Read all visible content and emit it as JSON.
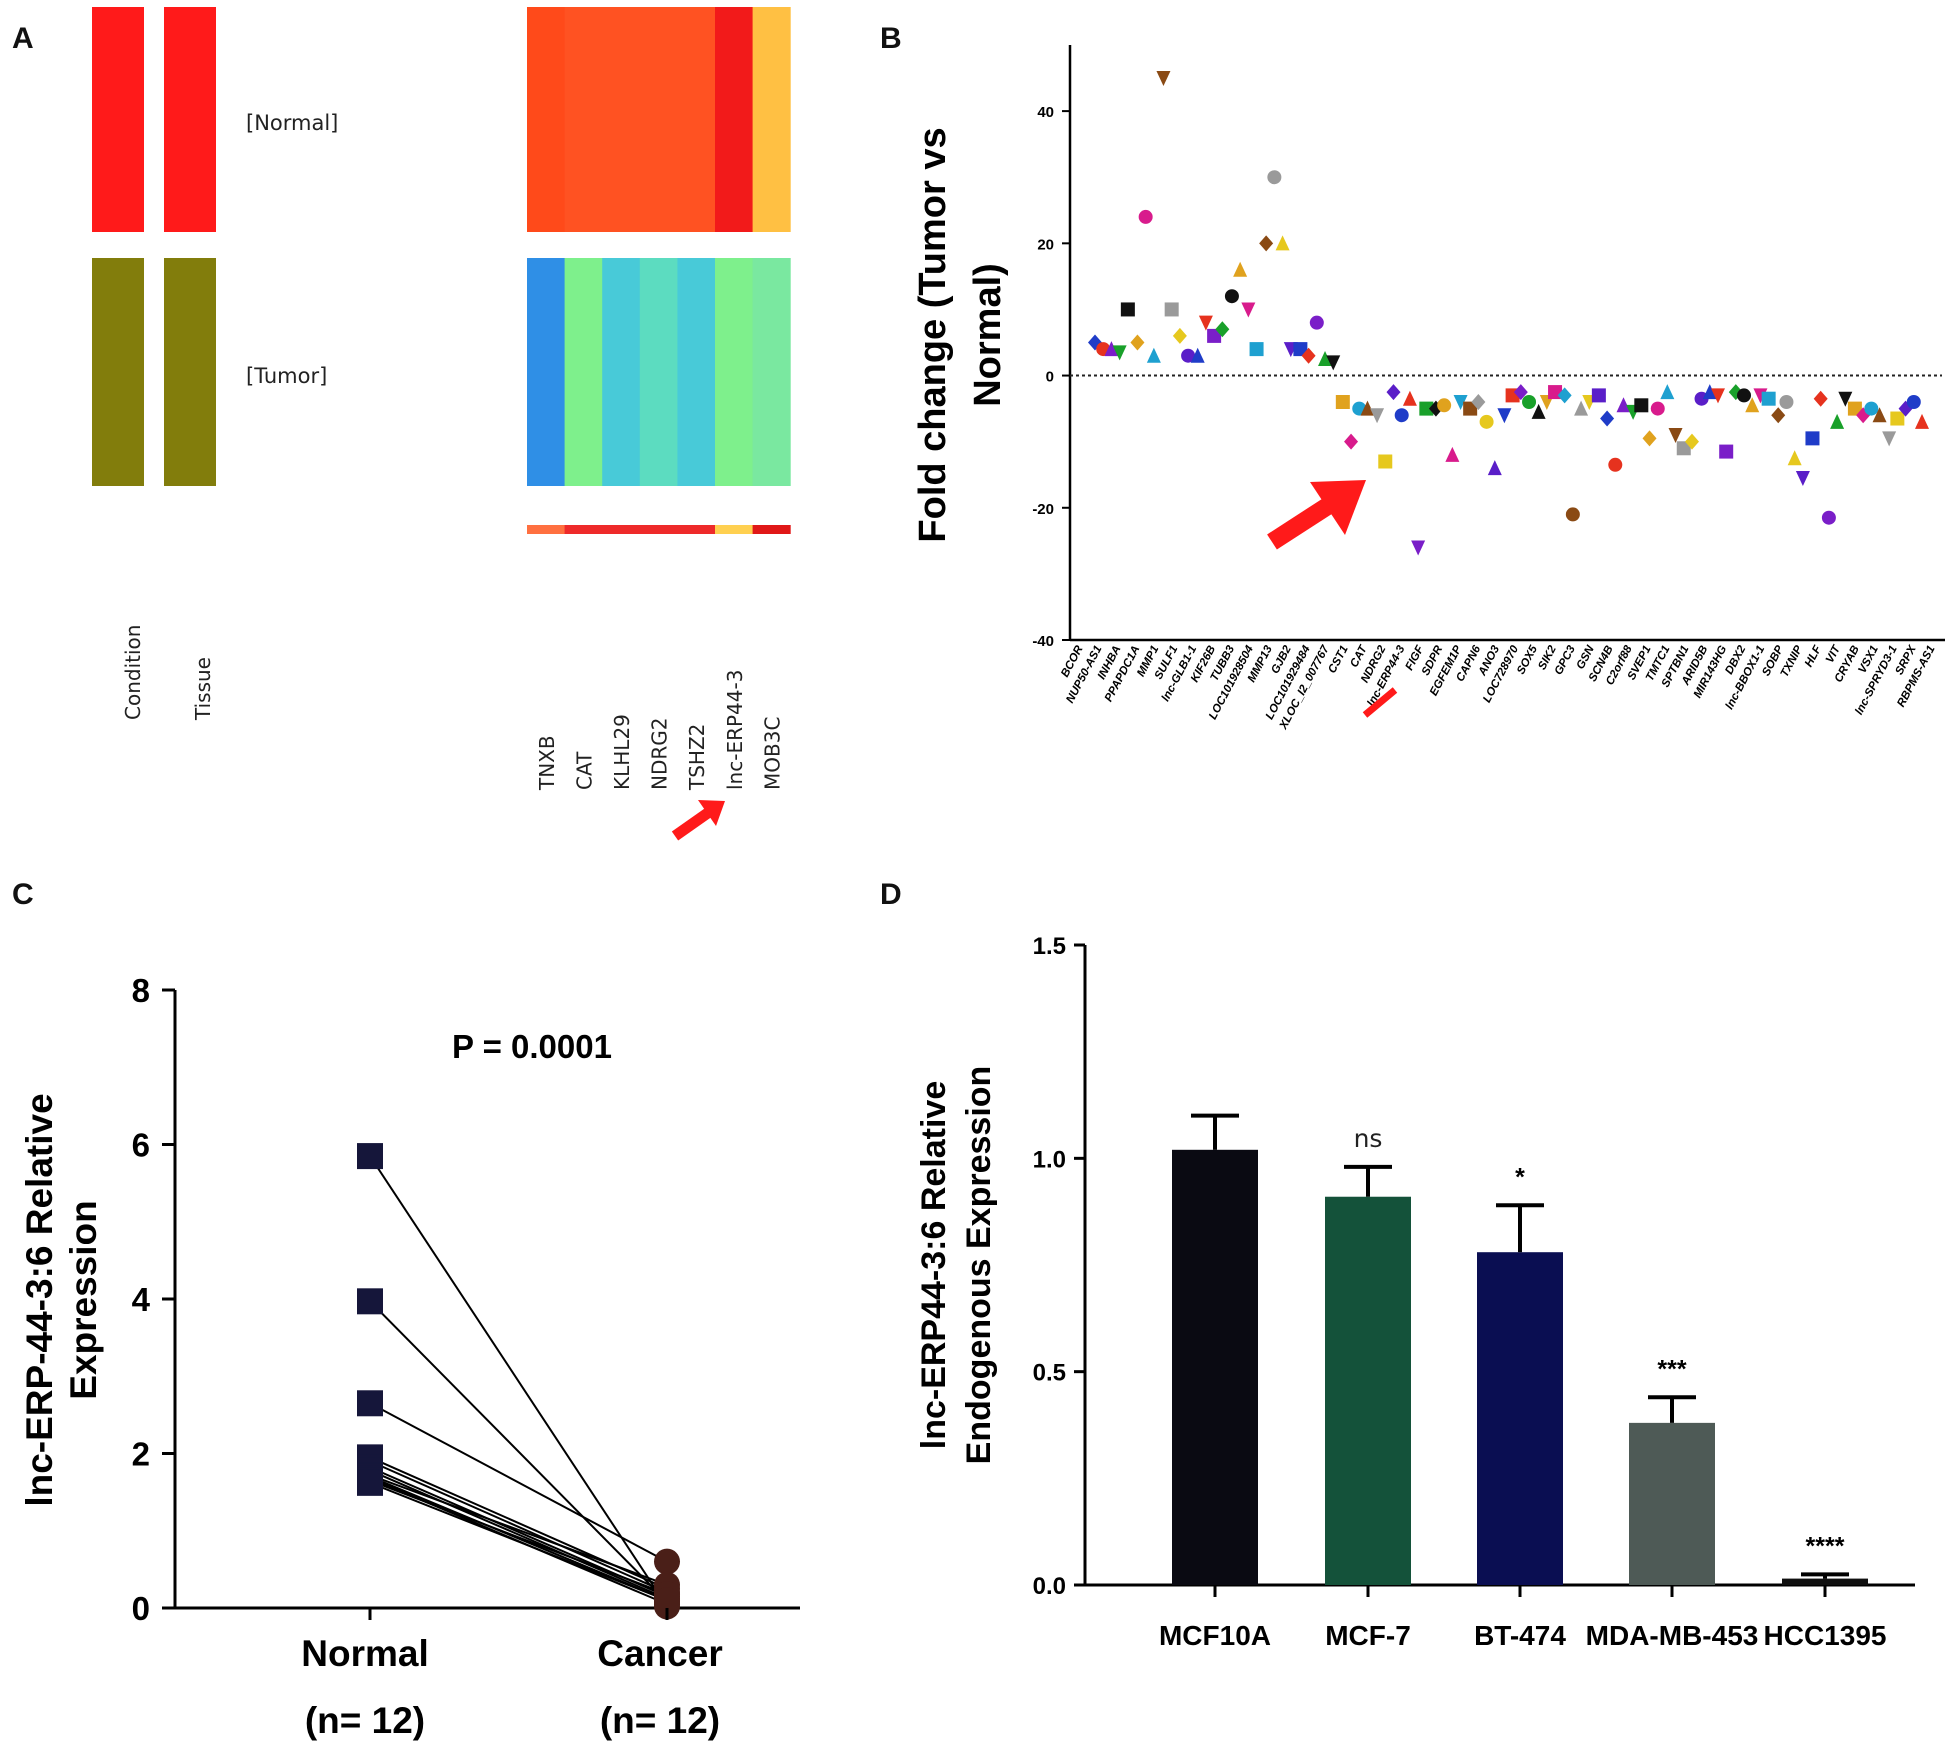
{
  "chart_data": [
    {
      "panel": "A",
      "type": "heatmap",
      "row_labels": [
        "[Normal]",
        "[Tumor]"
      ],
      "annotation_columns": [
        "Condition",
        "Tissue"
      ],
      "annotation_colors": {
        "Normal": "#ff1a1a",
        "Tumor": "#827d0c"
      },
      "genes": [
        "TNXB",
        "CAT",
        "KLHL29",
        "NDRG2",
        "TSHZ2",
        "lnc-ERP44-3",
        "MOB3C"
      ],
      "normal_colors": [
        "#ff4a1a",
        "#ff5222",
        "#ff5222",
        "#ff5222",
        "#ff5222",
        "#f21a1a",
        "#ffc043"
      ],
      "tumor_colors": [
        "#2f8fe6",
        "#7ef08c",
        "#48cad8",
        "#5cdcc0",
        "#48cad8",
        "#7ef08c",
        "#7ae8a0"
      ],
      "bottom_bar_colors": [
        "#ff7040",
        "#ee2a2a",
        "#ee2a2a",
        "#ee2a2a",
        "#ee2a2a",
        "#ffd050",
        "#e01818"
      ],
      "highlight": "lnc-ERP44-3"
    },
    {
      "panel": "B",
      "type": "scatter",
      "ylabel": "Fold change (Tumor vs Normal)",
      "ylabel_lines": [
        "Fold change (Tumor vs",
        "Normal)"
      ],
      "ylim": [
        -40,
        50
      ],
      "yticks": [
        -40,
        -20,
        0,
        20,
        40
      ],
      "reference_line": 0,
      "genes": [
        "BCOR",
        "NUP50-AS1",
        "INHBA",
        "PPAPDC1A",
        "MMP1",
        "SULF1",
        "lnc-GLB1-1",
        "KIF26B",
        "TUBB3",
        "LOC101928504",
        "MMP13",
        "GJB2",
        "LOC101929484",
        "XLOC_I2_007767",
        "CST1",
        "CAT",
        "NDRG2",
        "lnc-ERP44-3",
        "FIGF",
        "SDPR",
        "EGFEM1P",
        "CAPN6",
        "ANO3",
        "LOC728970",
        "SOX5",
        "SIK2",
        "GPC3",
        "GSN",
        "SCN4B",
        "C2orf88",
        "SVEP1",
        "TMTC1",
        "SPTBN1",
        "ARID5B",
        "MIR143HG",
        "DBX2",
        "lnc-BBOX1-1",
        "SOBP",
        "TXNIP",
        "HLF",
        "VIT",
        "CRYAB",
        "VSX1",
        "lnc-SPRYD3-1",
        "SRPX",
        "RBPMS-AS1"
      ],
      "points": [
        [
          1,
          5
        ],
        [
          1.6,
          4
        ],
        [
          2.2,
          4
        ],
        [
          2.8,
          3.5
        ],
        [
          3.4,
          10
        ],
        [
          4.1,
          5
        ],
        [
          4.7,
          24
        ],
        [
          5.3,
          3
        ],
        [
          6,
          45
        ],
        [
          6.6,
          10
        ],
        [
          7.2,
          6
        ],
        [
          7.8,
          3
        ],
        [
          8.5,
          3
        ],
        [
          9.1,
          8
        ],
        [
          9.7,
          6
        ],
        [
          10.3,
          7
        ],
        [
          11,
          12
        ],
        [
          11.6,
          16
        ],
        [
          12.2,
          10
        ],
        [
          12.8,
          4
        ],
        [
          13.5,
          20
        ],
        [
          14.1,
          30
        ],
        [
          14.7,
          20
        ],
        [
          15.3,
          4
        ],
        [
          16,
          4
        ],
        [
          16.6,
          3
        ],
        [
          17.2,
          8
        ],
        [
          17.8,
          2.5
        ],
        [
          18.4,
          2
        ],
        [
          19.1,
          -4
        ],
        [
          19.7,
          -10
        ],
        [
          20.3,
          -5
        ],
        [
          20.9,
          -5
        ],
        [
          21.6,
          -6
        ],
        [
          22.2,
          -13
        ],
        [
          22.8,
          -2.5
        ],
        [
          23.4,
          -6
        ],
        [
          24,
          -3.5
        ],
        [
          24.6,
          -26
        ],
        [
          25.2,
          -5
        ],
        [
          25.9,
          -5
        ],
        [
          26.5,
          -4.5
        ],
        [
          27.1,
          -12
        ],
        [
          27.7,
          -4
        ],
        [
          28.4,
          -5
        ],
        [
          29,
          -4
        ],
        [
          29.6,
          -7
        ],
        [
          30.2,
          -14
        ],
        [
          30.9,
          -6
        ],
        [
          31.5,
          -3
        ],
        [
          32.1,
          -2.5
        ],
        [
          32.7,
          -4
        ],
        [
          33.4,
          -5.5
        ],
        [
          34,
          -4
        ],
        [
          34.6,
          -2.5
        ],
        [
          35.3,
          -3
        ],
        [
          35.9,
          -21
        ],
        [
          36.5,
          -5
        ],
        [
          37.1,
          -4
        ],
        [
          37.8,
          -3
        ],
        [
          38.4,
          -6.5
        ],
        [
          39,
          -13.5
        ],
        [
          39.6,
          -4.5
        ],
        [
          40.3,
          -5.5
        ],
        [
          40.9,
          -4.5
        ],
        [
          41.5,
          -9.5
        ],
        [
          42.1,
          -5
        ],
        [
          42.8,
          -2.5
        ],
        [
          43.4,
          -9
        ],
        [
          44,
          -11
        ],
        [
          44.6,
          -10
        ],
        [
          45.3,
          -3.5
        ],
        [
          45.9,
          -2.5
        ],
        [
          46.5,
          -3
        ],
        [
          47.1,
          -11.5
        ],
        [
          47.8,
          -2.5
        ],
        [
          48.4,
          -3
        ],
        [
          49,
          -4.5
        ],
        [
          49.6,
          -3
        ],
        [
          50.2,
          -3.5
        ],
        [
          50.9,
          -6
        ],
        [
          51.5,
          -4
        ],
        [
          52.1,
          -12.5
        ],
        [
          52.7,
          -15.5
        ],
        [
          53.4,
          -9.5
        ],
        [
          54,
          -3.5
        ],
        [
          54.6,
          -21.5
        ],
        [
          55.2,
          -7
        ],
        [
          55.8,
          -3.5
        ],
        [
          56.5,
          -5
        ],
        [
          57.1,
          -6
        ],
        [
          57.7,
          -5
        ],
        [
          58.3,
          -6
        ],
        [
          59,
          -9.5
        ],
        [
          59.6,
          -6.5
        ],
        [
          60.2,
          -5
        ],
        [
          60.8,
          -4
        ],
        [
          61.4,
          -7
        ]
      ],
      "palette": [
        "#1f3cc8",
        "#e6321e",
        "#7a1ec8",
        "#19a02a",
        "#111111",
        "#e0a21e",
        "#d81b8c",
        "#1ea0d0",
        "#8a4a14",
        "#9a9a9a",
        "#e6c81e",
        "#5a1ec8"
      ],
      "highlight": "lnc-ERP44-3"
    },
    {
      "panel": "C",
      "type": "scatter",
      "title": "P = 0.0001",
      "ylabel": "lnc-ERP-44-3:6 Relative Expression",
      "ylabel_lines": [
        "lnc-ERP-44-3:6 Relative",
        "Expression"
      ],
      "ylim": [
        0,
        8
      ],
      "yticks": [
        0,
        2,
        4,
        6,
        8
      ],
      "groups": [
        "Normal",
        "Cancer"
      ],
      "group_n": [
        "(n= 12)",
        "(n= 12)"
      ],
      "pairs": [
        [
          5.85,
          0.02
        ],
        [
          3.97,
          0.08
        ],
        [
          2.65,
          0.6
        ],
        [
          1.95,
          0.25
        ],
        [
          1.9,
          0.2
        ],
        [
          1.82,
          0.15
        ],
        [
          1.78,
          0.12
        ],
        [
          1.72,
          0.3
        ],
        [
          1.7,
          0.1
        ],
        [
          1.68,
          0.05
        ],
        [
          1.65,
          0.18
        ],
        [
          1.62,
          0.1
        ]
      ],
      "title_lines": [
        "P = 0.0001"
      ]
    },
    {
      "panel": "D",
      "type": "bar",
      "ylabel": "lnc-ERP44-3:6 Relative Endogenous Expression",
      "ylabel_lines": [
        "lnc-ERP44-3:6 Relative",
        "Endogenous Expression"
      ],
      "ylim": [
        0,
        1.5
      ],
      "yticks": [
        "0.0",
        "0.5",
        "1.0",
        "1.5"
      ],
      "categories": [
        "MCF10A",
        "MCF-7",
        "BT-474",
        "MDA-MB-453",
        "HCC1395"
      ],
      "values": [
        1.02,
        0.91,
        0.78,
        0.38,
        0.015
      ],
      "errors": [
        0.08,
        0.07,
        0.11,
        0.06,
        0.01
      ],
      "significance": [
        "",
        "ns",
        "*",
        "***",
        "****"
      ],
      "colors": [
        "#0a0a12",
        "#14523a",
        "#0a0e52",
        "#4e5a56",
        "#101010"
      ]
    }
  ],
  "panel_letters": [
    "A",
    "B",
    "C",
    "D"
  ]
}
